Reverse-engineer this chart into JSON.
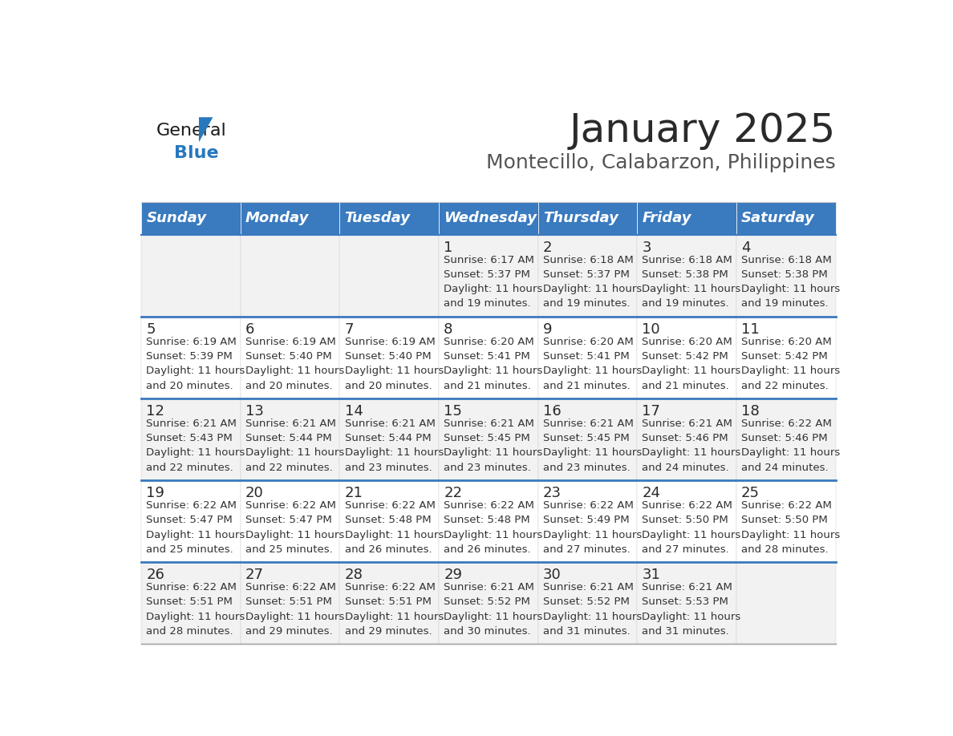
{
  "title": "January 2025",
  "subtitle": "Montecillo, Calabarzon, Philippines",
  "header_color": "#3a7abf",
  "header_text_color": "#ffffff",
  "day_number_color": "#2a2a2a",
  "cell_text_color": "#333333",
  "border_color": "#3a7abf",
  "days_of_week": [
    "Sunday",
    "Monday",
    "Tuesday",
    "Wednesday",
    "Thursday",
    "Friday",
    "Saturday"
  ],
  "calendar_data": [
    [
      {
        "day": "",
        "sunrise": "",
        "sunset": "",
        "daylight": ""
      },
      {
        "day": "",
        "sunrise": "",
        "sunset": "",
        "daylight": ""
      },
      {
        "day": "",
        "sunrise": "",
        "sunset": "",
        "daylight": ""
      },
      {
        "day": "1",
        "sunrise": "6:17 AM",
        "sunset": "5:37 PM",
        "daylight": "11 hours and 19 minutes."
      },
      {
        "day": "2",
        "sunrise": "6:18 AM",
        "sunset": "5:37 PM",
        "daylight": "11 hours and 19 minutes."
      },
      {
        "day": "3",
        "sunrise": "6:18 AM",
        "sunset": "5:38 PM",
        "daylight": "11 hours and 19 minutes."
      },
      {
        "day": "4",
        "sunrise": "6:18 AM",
        "sunset": "5:38 PM",
        "daylight": "11 hours and 19 minutes."
      }
    ],
    [
      {
        "day": "5",
        "sunrise": "6:19 AM",
        "sunset": "5:39 PM",
        "daylight": "11 hours and 20 minutes."
      },
      {
        "day": "6",
        "sunrise": "6:19 AM",
        "sunset": "5:40 PM",
        "daylight": "11 hours and 20 minutes."
      },
      {
        "day": "7",
        "sunrise": "6:19 AM",
        "sunset": "5:40 PM",
        "daylight": "11 hours and 20 minutes."
      },
      {
        "day": "8",
        "sunrise": "6:20 AM",
        "sunset": "5:41 PM",
        "daylight": "11 hours and 21 minutes."
      },
      {
        "day": "9",
        "sunrise": "6:20 AM",
        "sunset": "5:41 PM",
        "daylight": "11 hours and 21 minutes."
      },
      {
        "day": "10",
        "sunrise": "6:20 AM",
        "sunset": "5:42 PM",
        "daylight": "11 hours and 21 minutes."
      },
      {
        "day": "11",
        "sunrise": "6:20 AM",
        "sunset": "5:42 PM",
        "daylight": "11 hours and 22 minutes."
      }
    ],
    [
      {
        "day": "12",
        "sunrise": "6:21 AM",
        "sunset": "5:43 PM",
        "daylight": "11 hours and 22 minutes."
      },
      {
        "day": "13",
        "sunrise": "6:21 AM",
        "sunset": "5:44 PM",
        "daylight": "11 hours and 22 minutes."
      },
      {
        "day": "14",
        "sunrise": "6:21 AM",
        "sunset": "5:44 PM",
        "daylight": "11 hours and 23 minutes."
      },
      {
        "day": "15",
        "sunrise": "6:21 AM",
        "sunset": "5:45 PM",
        "daylight": "11 hours and 23 minutes."
      },
      {
        "day": "16",
        "sunrise": "6:21 AM",
        "sunset": "5:45 PM",
        "daylight": "11 hours and 23 minutes."
      },
      {
        "day": "17",
        "sunrise": "6:21 AM",
        "sunset": "5:46 PM",
        "daylight": "11 hours and 24 minutes."
      },
      {
        "day": "18",
        "sunrise": "6:22 AM",
        "sunset": "5:46 PM",
        "daylight": "11 hours and 24 minutes."
      }
    ],
    [
      {
        "day": "19",
        "sunrise": "6:22 AM",
        "sunset": "5:47 PM",
        "daylight": "11 hours and 25 minutes."
      },
      {
        "day": "20",
        "sunrise": "6:22 AM",
        "sunset": "5:47 PM",
        "daylight": "11 hours and 25 minutes."
      },
      {
        "day": "21",
        "sunrise": "6:22 AM",
        "sunset": "5:48 PM",
        "daylight": "11 hours and 26 minutes."
      },
      {
        "day": "22",
        "sunrise": "6:22 AM",
        "sunset": "5:48 PM",
        "daylight": "11 hours and 26 minutes."
      },
      {
        "day": "23",
        "sunrise": "6:22 AM",
        "sunset": "5:49 PM",
        "daylight": "11 hours and 27 minutes."
      },
      {
        "day": "24",
        "sunrise": "6:22 AM",
        "sunset": "5:50 PM",
        "daylight": "11 hours and 27 minutes."
      },
      {
        "day": "25",
        "sunrise": "6:22 AM",
        "sunset": "5:50 PM",
        "daylight": "11 hours and 28 minutes."
      }
    ],
    [
      {
        "day": "26",
        "sunrise": "6:22 AM",
        "sunset": "5:51 PM",
        "daylight": "11 hours and 28 minutes."
      },
      {
        "day": "27",
        "sunrise": "6:22 AM",
        "sunset": "5:51 PM",
        "daylight": "11 hours and 29 minutes."
      },
      {
        "day": "28",
        "sunrise": "6:22 AM",
        "sunset": "5:51 PM",
        "daylight": "11 hours and 29 minutes."
      },
      {
        "day": "29",
        "sunrise": "6:21 AM",
        "sunset": "5:52 PM",
        "daylight": "11 hours and 30 minutes."
      },
      {
        "day": "30",
        "sunrise": "6:21 AM",
        "sunset": "5:52 PM",
        "daylight": "11 hours and 31 minutes."
      },
      {
        "day": "31",
        "sunrise": "6:21 AM",
        "sunset": "5:53 PM",
        "daylight": "11 hours and 31 minutes."
      },
      {
        "day": "",
        "sunrise": "",
        "sunset": "",
        "daylight": ""
      }
    ]
  ],
  "logo_text_general": "General",
  "logo_text_blue": "Blue",
  "title_fontsize": 36,
  "subtitle_fontsize": 18,
  "header_fontsize": 13,
  "day_number_fontsize": 13,
  "cell_text_fontsize": 9.5
}
